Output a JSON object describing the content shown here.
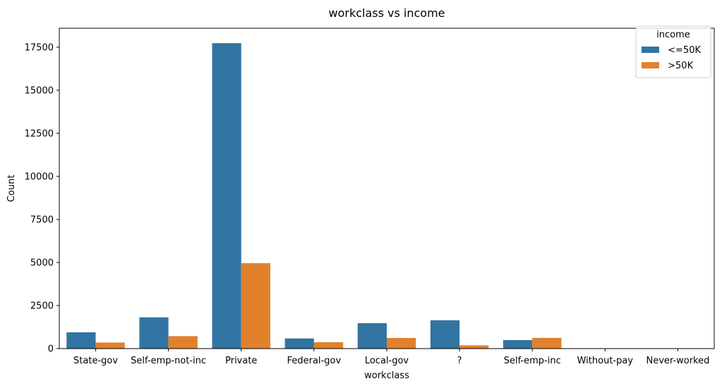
{
  "chart_data": {
    "type": "bar",
    "title": "workclass vs income",
    "xlabel": "workclass",
    "ylabel": "Count",
    "categories": [
      " State-gov",
      " Self-emp-not-inc",
      " Private",
      " Federal-gov",
      " Local-gov",
      " ?",
      " Self-emp-inc",
      " Without-pay",
      " Never-worked"
    ],
    "series": [
      {
        "name": " <=50K",
        "color": "#3274a1",
        "values": [
          945,
          1817,
          17733,
          589,
          1476,
          1645,
          494,
          14,
          7
        ]
      },
      {
        "name": " >50K",
        "color": "#e1812c",
        "values": [
          353,
          724,
          4963,
          371,
          617,
          191,
          622,
          0,
          0
        ]
      }
    ],
    "ylim": [
      0,
      18600
    ],
    "yticks": [
      0,
      2500,
      5000,
      7500,
      10000,
      12500,
      15000,
      17500
    ],
    "legend": {
      "title": "income",
      "position": "top-right"
    },
    "grid": false
  }
}
